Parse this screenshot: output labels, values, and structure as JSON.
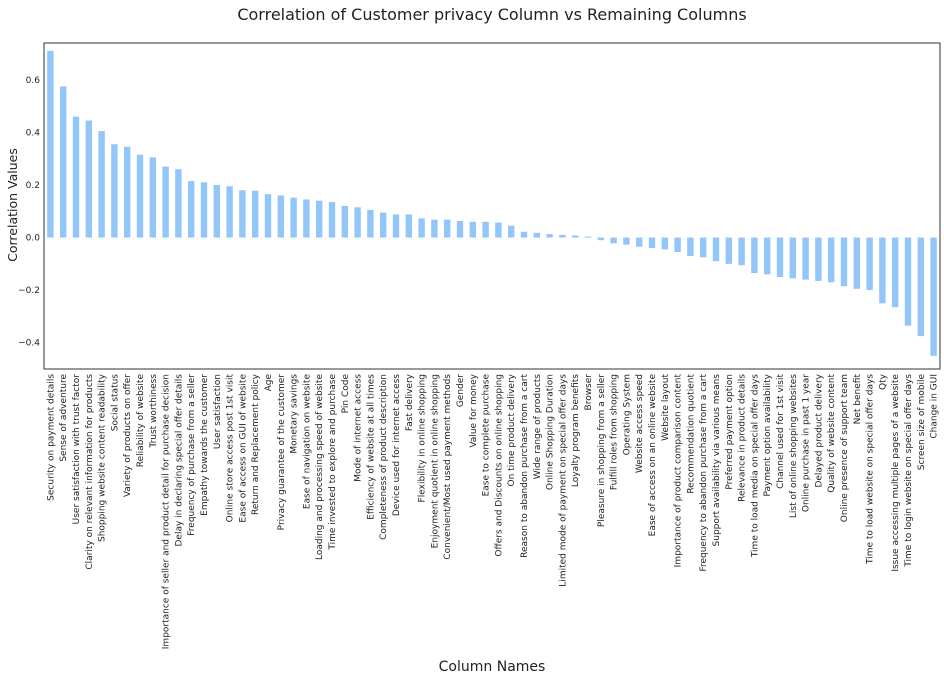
{
  "chart_data": {
    "type": "bar",
    "title": "Correlation of Customer privacy Column vs Remaining Columns",
    "xlabel": "Column Names",
    "ylabel": "Correlation Values",
    "ylim": [
      -0.5,
      0.74
    ],
    "yticks": [
      -0.4,
      -0.2,
      0.0,
      0.2,
      0.4,
      0.6
    ],
    "ytick_labels": [
      "−0.4",
      "−0.2",
      "0.0",
      "0.2",
      "0.4",
      "0.6"
    ],
    "grid": false,
    "bar_color": "#92c5f9",
    "categories": [
      "Security on payment details",
      "Sense of adventure",
      "User satisfaction with trust factor",
      "Clarity on relevant information for products",
      "Shopping website content readability",
      "Social status",
      "Variety of products on offer",
      "Reliability of website",
      "Trust worthiness",
      "Importance of seller and product detail for purchase decision",
      "Delay in declaring special offer details",
      "Frequency of purchase from a seller",
      "Empathy towards the customer",
      "User satisfaction",
      "Online store access post 1st visit",
      "Ease of access on GUI of website",
      "Return and Replacement policy",
      "Age",
      "Privacy guarantee of the customer",
      "Monetary savings",
      "Ease of navigation on website",
      "Loading and processing speed of website",
      "Time invested to explore and purchase",
      "Pin Code",
      "Mode of internet access",
      "Efficiency of website at all times",
      "Completeness of product description",
      "Device used for internet access",
      "Fast delivery",
      "Flexibility in online shopping",
      "Enjoyment quotient in online shopping",
      "Convenient/Most used payment methods",
      "Gender",
      "Value for money",
      "Ease to complete purchase",
      "Offers and Discounts on online shopping",
      "On time product delivery",
      "Reason to abandon purchase from a cart",
      "Wide range of products",
      "Online Shopping Duration",
      "Limited mode of payment on special offer days",
      "Loyalty program benefits",
      "Browser",
      "Pleasure in shopping from a seller",
      "Fulfill roles from shopping",
      "Operating System",
      "Website access speed",
      "Ease of access on an online website",
      "Website layout",
      "Importance of product comparison content",
      "Recommendation quotient",
      "Frequency to abandon purchase from a cart",
      "Support availability via various means",
      "Preferred payment option",
      "Relevance in product details",
      "Time to load media on special offer days",
      "Payment option availability",
      "Channel used for 1st visit",
      "List of online shopping websites",
      "Online purchase in past 1 year",
      "Delayed product delivery",
      "Quality of website content",
      "Online presence of support team",
      "Net benefit",
      "Time to load website on special offer days",
      "Qty",
      "Issue accessing multiple pages of a website",
      "Time to login website on special offer days",
      "Screen size of mobile",
      "Change in GUI"
    ],
    "values": [
      0.71,
      0.575,
      0.46,
      0.445,
      0.405,
      0.355,
      0.345,
      0.315,
      0.305,
      0.27,
      0.26,
      0.215,
      0.21,
      0.2,
      0.195,
      0.18,
      0.178,
      0.165,
      0.16,
      0.152,
      0.145,
      0.14,
      0.135,
      0.12,
      0.115,
      0.105,
      0.095,
      0.088,
      0.088,
      0.073,
      0.068,
      0.068,
      0.063,
      0.06,
      0.06,
      0.057,
      0.045,
      0.022,
      0.018,
      0.013,
      0.01,
      0.008,
      0.004,
      -0.01,
      -0.022,
      -0.027,
      -0.035,
      -0.04,
      -0.045,
      -0.055,
      -0.07,
      -0.075,
      -0.09,
      -0.1,
      -0.105,
      -0.135,
      -0.14,
      -0.15,
      -0.155,
      -0.16,
      -0.165,
      -0.17,
      -0.185,
      -0.195,
      -0.2,
      -0.25,
      -0.265,
      -0.335,
      -0.375,
      -0.45
    ]
  }
}
